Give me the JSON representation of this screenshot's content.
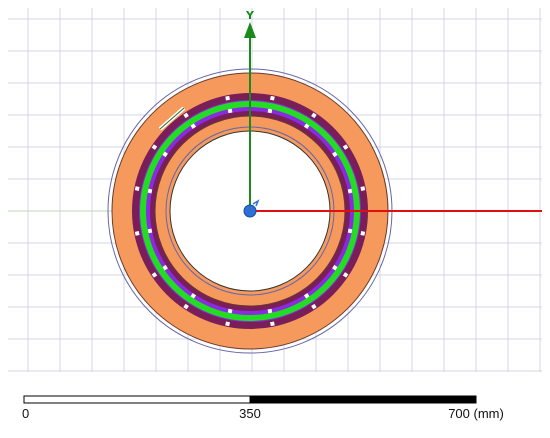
{
  "viewport": {
    "axes": {
      "y_label": "Y",
      "y_color": "#1a8a1a",
      "x_color": "#e01010",
      "origin_color": "#2e6fd6"
    },
    "colors": {
      "grid": "#d6d6e6",
      "outer_race": "#f59a5c",
      "inner_race": "#f59a5c",
      "cage": "#7a1e5a",
      "rolling_elements": "#8a2be2",
      "pitch_circle": "#22dd22",
      "outline": "#5555aa"
    }
  },
  "scale_bar": {
    "labels": [
      "0",
      "350",
      "700 (mm)"
    ]
  }
}
